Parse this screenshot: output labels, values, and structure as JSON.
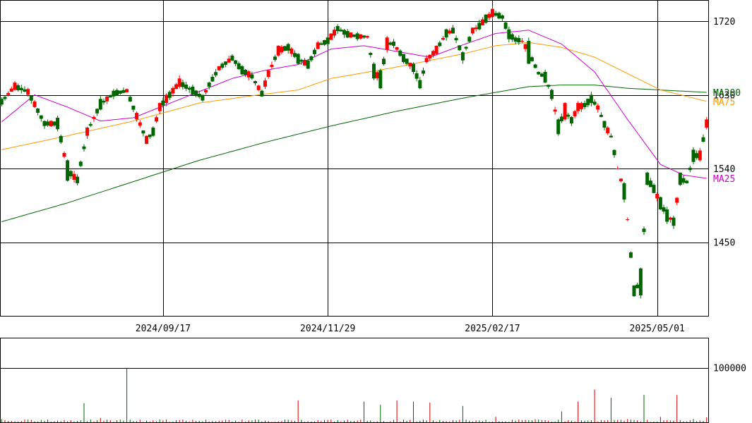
{
  "chart_data": {
    "type": "candlestick",
    "colors": {
      "up": "#ff0000",
      "down": "#006600",
      "ma25": "#cc00cc",
      "ma75": "#ff9900",
      "ma200": "#006600",
      "volume_up": "#cc0000",
      "volume_down": "#006600",
      "grid": "#000000",
      "background": "#ffffff"
    },
    "price_axis": {
      "ylim": [
        1360,
        1745
      ],
      "ticks": [
        1720,
        1630,
        1540,
        1450
      ]
    },
    "volume_axis": {
      "ylim": [
        0,
        155000
      ],
      "ticks": [
        100000
      ]
    },
    "x_axis": {
      "ticks": [
        {
          "index": 49,
          "label": "2024/09/17"
        },
        {
          "index": 99,
          "label": "2024/11/29"
        },
        {
          "index": 149,
          "label": "2025/02/17"
        },
        {
          "index": 199,
          "label": "2025/05/01"
        }
      ]
    },
    "legend": [
      {
        "label": "MA200",
        "value": 1633,
        "color": "#006600"
      },
      {
        "label": "MA75",
        "value": 1622,
        "color": "#ff9900"
      },
      {
        "label": "MA25",
        "value": 1528,
        "color": "#cc00cc"
      }
    ],
    "anchors": {
      "candles": [
        [
          0,
          1625,
          1618
        ],
        [
          4,
          1636,
          1645
        ],
        [
          8,
          1630,
          1637
        ],
        [
          10,
          1615,
          1622
        ],
        [
          13,
          1598,
          1592
        ],
        [
          17,
          1602,
          1588
        ],
        [
          20,
          1550,
          1525
        ],
        [
          23,
          1530,
          1522
        ],
        [
          26,
          1580,
          1590
        ],
        [
          30,
          1625,
          1612
        ],
        [
          34,
          1635,
          1628
        ],
        [
          38,
          1633,
          1637
        ],
        [
          41,
          1600,
          1608
        ],
        [
          44,
          1570,
          1580
        ],
        [
          46,
          1590,
          1580
        ],
        [
          48,
          1610,
          1620
        ],
        [
          50,
          1620,
          1630
        ],
        [
          54,
          1640,
          1650
        ],
        [
          58,
          1640,
          1630
        ],
        [
          61,
          1630,
          1623
        ],
        [
          63,
          1645,
          1640
        ],
        [
          66,
          1660,
          1665
        ],
        [
          70,
          1678,
          1672
        ],
        [
          73,
          1665,
          1655
        ],
        [
          76,
          1655,
          1650
        ],
        [
          79,
          1635,
          1628
        ],
        [
          81,
          1652,
          1660
        ],
        [
          84,
          1678,
          1690
        ],
        [
          87,
          1692,
          1684
        ],
        [
          90,
          1680,
          1668
        ],
        [
          93,
          1672,
          1662
        ],
        [
          96,
          1686,
          1694
        ],
        [
          99,
          1700,
          1692
        ],
        [
          102,
          1714,
          1708
        ],
        [
          105,
          1708,
          1700
        ],
        [
          108,
          1705,
          1698
        ],
        [
          111,
          1700,
          1702
        ],
        [
          113,
          1668,
          1650
        ],
        [
          115,
          1660,
          1638
        ],
        [
          117,
          1685,
          1700
        ],
        [
          119,
          1695,
          1690
        ],
        [
          122,
          1680,
          1670
        ],
        [
          125,
          1668,
          1658
        ],
        [
          127,
          1648,
          1638
        ],
        [
          129,
          1670,
          1675
        ],
        [
          132,
          1680,
          1690
        ],
        [
          135,
          1710,
          1700
        ],
        [
          137,
          1712,
          1705
        ],
        [
          140,
          1682,
          1672
        ],
        [
          143,
          1705,
          1712
        ],
        [
          145,
          1718,
          1710
        ],
        [
          147,
          1728,
          1718
        ],
        [
          149,
          1725,
          1735
        ],
        [
          152,
          1727,
          1723
        ],
        [
          154,
          1710,
          1698
        ],
        [
          156,
          1700,
          1695
        ],
        [
          158,
          1696,
          1696
        ],
        [
          160,
          1696,
          1668
        ],
        [
          163,
          1658,
          1655
        ],
        [
          165,
          1658,
          1645
        ],
        [
          167,
          1636,
          1625
        ],
        [
          169,
          1600,
          1582
        ],
        [
          171,
          1600,
          1620
        ],
        [
          173,
          1603,
          1595
        ],
        [
          175,
          1610,
          1620
        ],
        [
          177,
          1620,
          1615
        ],
        [
          179,
          1630,
          1620
        ],
        [
          181,
          1612,
          1617
        ],
        [
          183,
          1598,
          1590
        ],
        [
          185,
          1580,
          1578
        ],
        [
          187,
          1540,
          1540
        ],
        [
          189,
          1522,
          1502
        ],
        [
          190,
          1478,
          1478
        ],
        [
          192,
          1397,
          1384
        ],
        [
          194,
          1418,
          1385
        ],
        [
          196,
          1535,
          1520
        ],
        [
          198,
          1520,
          1510
        ],
        [
          200,
          1505,
          1490
        ],
        [
          202,
          1490,
          1475
        ],
        [
          204,
          1480,
          1470
        ],
        [
          206,
          1535,
          1520
        ],
        [
          208,
          1525,
          1522
        ],
        [
          210,
          1563,
          1548
        ],
        [
          212,
          1550,
          1562
        ],
        [
          214,
          1590,
          1600
        ]
      ],
      "volume": [
        [
          0,
          6000
        ],
        [
          10,
          2000
        ],
        [
          25,
          35000
        ],
        [
          30,
          8000
        ],
        [
          38,
          98000
        ],
        [
          50,
          5000
        ],
        [
          70,
          1500
        ],
        [
          90,
          40000
        ],
        [
          110,
          38000
        ],
        [
          115,
          32000
        ],
        [
          120,
          40000
        ],
        [
          125,
          38000
        ],
        [
          130,
          36000
        ],
        [
          140,
          30000
        ],
        [
          150,
          10000
        ],
        [
          160,
          4000
        ],
        [
          170,
          20000
        ],
        [
          175,
          38000
        ],
        [
          180,
          60000
        ],
        [
          185,
          45000
        ],
        [
          190,
          6000
        ],
        [
          195,
          50000
        ],
        [
          200,
          10000
        ],
        [
          205,
          50000
        ],
        [
          210,
          6000
        ],
        [
          214,
          9000
        ]
      ],
      "ma25": [
        [
          0,
          1597
        ],
        [
          10,
          1630
        ],
        [
          20,
          1615
        ],
        [
          30,
          1598
        ],
        [
          40,
          1602
        ],
        [
          50,
          1618
        ],
        [
          60,
          1634
        ],
        [
          70,
          1650
        ],
        [
          80,
          1660
        ],
        [
          90,
          1667
        ],
        [
          100,
          1686
        ],
        [
          110,
          1690
        ],
        [
          120,
          1683
        ],
        [
          130,
          1676
        ],
        [
          140,
          1691
        ],
        [
          150,
          1705
        ],
        [
          160,
          1709
        ],
        [
          170,
          1692
        ],
        [
          180,
          1658
        ],
        [
          190,
          1600
        ],
        [
          200,
          1545
        ],
        [
          207,
          1532
        ],
        [
          214,
          1528
        ]
      ],
      "ma75": [
        [
          0,
          1563
        ],
        [
          20,
          1580
        ],
        [
          40,
          1598
        ],
        [
          60,
          1620
        ],
        [
          80,
          1631
        ],
        [
          90,
          1636
        ],
        [
          100,
          1650
        ],
        [
          120,
          1664
        ],
        [
          140,
          1680
        ],
        [
          150,
          1690
        ],
        [
          160,
          1694
        ],
        [
          170,
          1688
        ],
        [
          180,
          1676
        ],
        [
          190,
          1656
        ],
        [
          200,
          1636
        ],
        [
          214,
          1622
        ]
      ],
      "ma200": [
        [
          0,
          1475
        ],
        [
          20,
          1498
        ],
        [
          40,
          1524
        ],
        [
          60,
          1550
        ],
        [
          80,
          1572
        ],
        [
          100,
          1592
        ],
        [
          120,
          1610
        ],
        [
          140,
          1626
        ],
        [
          150,
          1633
        ],
        [
          160,
          1640
        ],
        [
          170,
          1642
        ],
        [
          180,
          1642
        ],
        [
          190,
          1638
        ],
        [
          214,
          1633
        ]
      ]
    }
  }
}
